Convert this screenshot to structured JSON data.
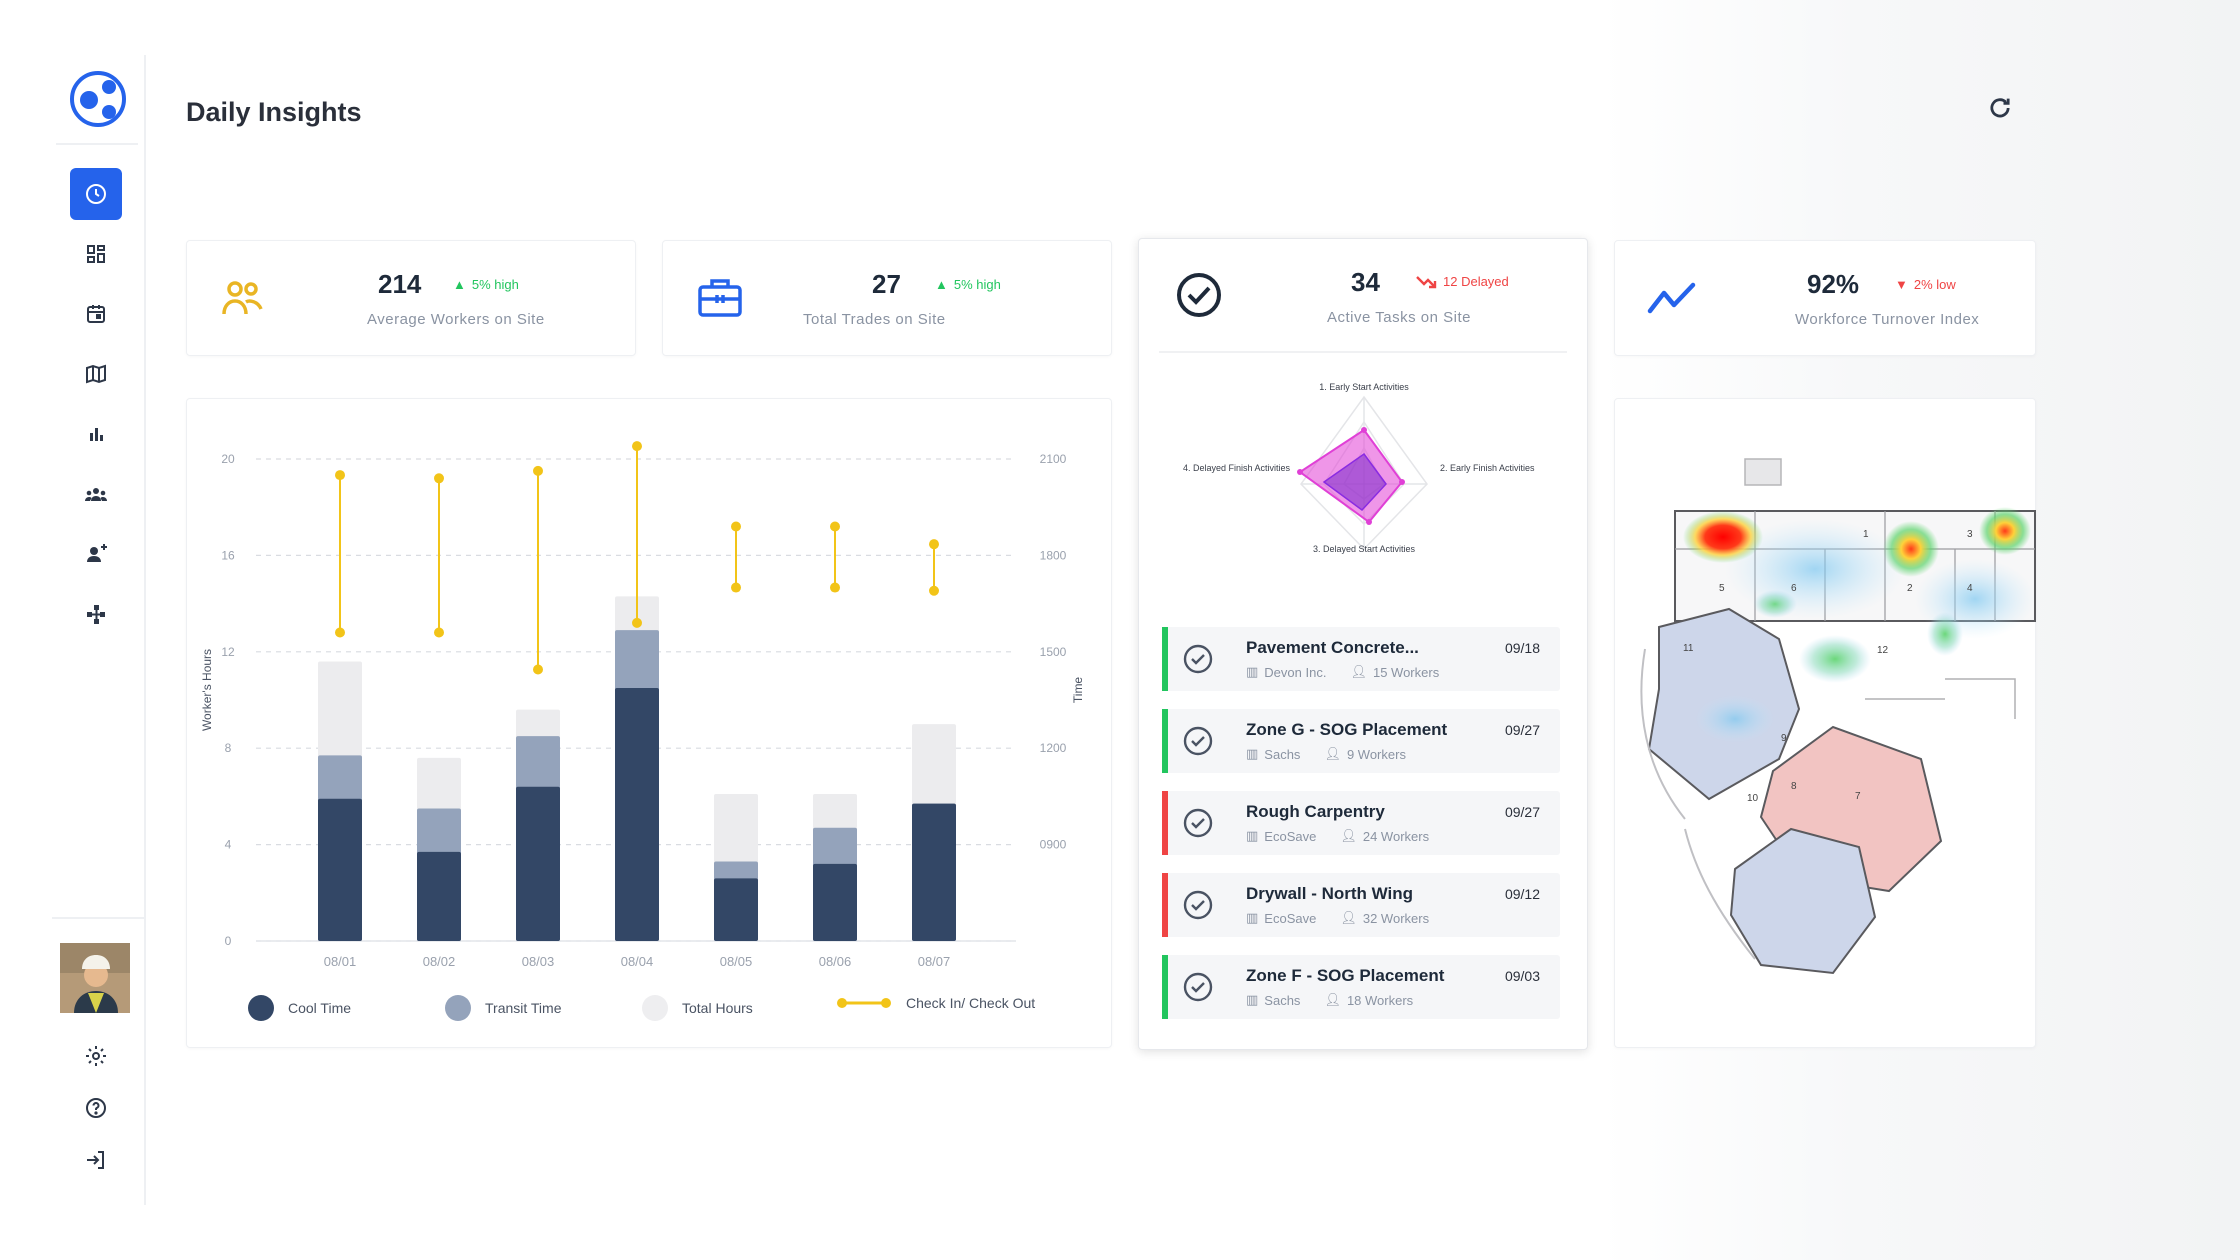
{
  "header": {
    "title": "Daily Insights"
  },
  "colors": {
    "accent": "#2563eb",
    "cool_time": "#334766",
    "transit_time": "#94a3bb",
    "total_hours": "#e8e8ea",
    "check": "#f2c418",
    "up": "#22c55e",
    "down": "#ef4444",
    "bar_green": "#22c55e",
    "bar_red": "#ef4444"
  },
  "sidebar": {
    "items": [
      {
        "icon": "clock-icon",
        "active": true
      },
      {
        "icon": "dashboard-grid-icon"
      },
      {
        "icon": "calendar-icon"
      },
      {
        "icon": "map-icon"
      },
      {
        "icon": "bar-chart-icon"
      },
      {
        "icon": "team-icon"
      },
      {
        "icon": "user-add-icon"
      },
      {
        "icon": "network-icon"
      }
    ],
    "bottom": [
      {
        "icon": "settings-icon"
      },
      {
        "icon": "help-icon"
      },
      {
        "icon": "logout-icon"
      }
    ]
  },
  "stats": [
    {
      "value": "214",
      "trend": "5% high",
      "direction": "up",
      "label": "Average Workers on Site",
      "icon": "workers-icon"
    },
    {
      "value": "27",
      "trend": "5% high",
      "direction": "up",
      "label": "Total Trades on Site",
      "icon": "briefcase-icon"
    },
    {
      "value": "34",
      "trend": "12 Delayed",
      "direction": "down",
      "label": "Active Tasks on Site",
      "icon": "check-circle-icon"
    },
    {
      "value": "92%",
      "trend": "2% low",
      "direction": "down",
      "label": "Workforce Turnover Index",
      "icon": "trend-line-icon"
    }
  ],
  "chart_data": {
    "type": "bar",
    "categories": [
      "08/01",
      "08/02",
      "08/03",
      "08/04",
      "08/05",
      "08/06",
      "08/07"
    ],
    "series": [
      {
        "name": "Cool Time",
        "values": [
          5.9,
          3.7,
          6.4,
          10.5,
          2.6,
          3.2,
          5.7
        ]
      },
      {
        "name": "Transit Time",
        "values": [
          1.8,
          1.8,
          2.1,
          2.4,
          0.7,
          1.5,
          0
        ]
      },
      {
        "name": "Total Hours",
        "values": [
          11.6,
          7.6,
          9.6,
          14.3,
          6.1,
          6.1,
          9.0
        ]
      },
      {
        "name": "Check In/ Check Out",
        "check_in": [
          1560,
          1560,
          1445,
          1590,
          1700,
          1700,
          1690
        ],
        "check_out": [
          2050,
          2040,
          2063,
          2140,
          1890,
          1890,
          1835
        ]
      }
    ],
    "ylabel": "Worker's Hours",
    "ylabel_right": "Time",
    "yticks": [
      0,
      4,
      8,
      12,
      16,
      20
    ],
    "yticks_right": [
      "0900",
      "1200",
      "1500",
      "1800",
      "2100"
    ],
    "ylim": [
      0,
      20
    ],
    "ylim_right": [
      600,
      2100
    ],
    "grid": true,
    "legend": "bottom"
  },
  "radar": {
    "labels": [
      "1. Early Start Activities",
      "2. Early Finish Activities",
      "3. Delayed Start Activities",
      "4. Delayed Finish Activities"
    ]
  },
  "tasks": [
    {
      "title": "Pavement Concrete...",
      "date": "09/18",
      "company": "Devon Inc.",
      "workers": "15 Workers",
      "status": "green"
    },
    {
      "title": "Zone G - SOG Placement",
      "date": "09/27",
      "company": "Sachs",
      "workers": "9 Workers",
      "status": "green"
    },
    {
      "title": "Rough Carpentry",
      "date": "09/27",
      "company": "EcoSave",
      "workers": "24 Workers",
      "status": "red"
    },
    {
      "title": "Drywall - North Wing",
      "date": "09/12",
      "company": "EcoSave",
      "workers": "32 Workers",
      "status": "red"
    },
    {
      "title": "Zone F - SOG Placement",
      "date": "09/03",
      "company": "Sachs",
      "workers": "18 Workers",
      "status": "green"
    }
  ],
  "map": {
    "rooms": [
      "1",
      "2",
      "3",
      "4",
      "5",
      "6",
      "7",
      "8",
      "9",
      "10",
      "11",
      "12"
    ]
  }
}
